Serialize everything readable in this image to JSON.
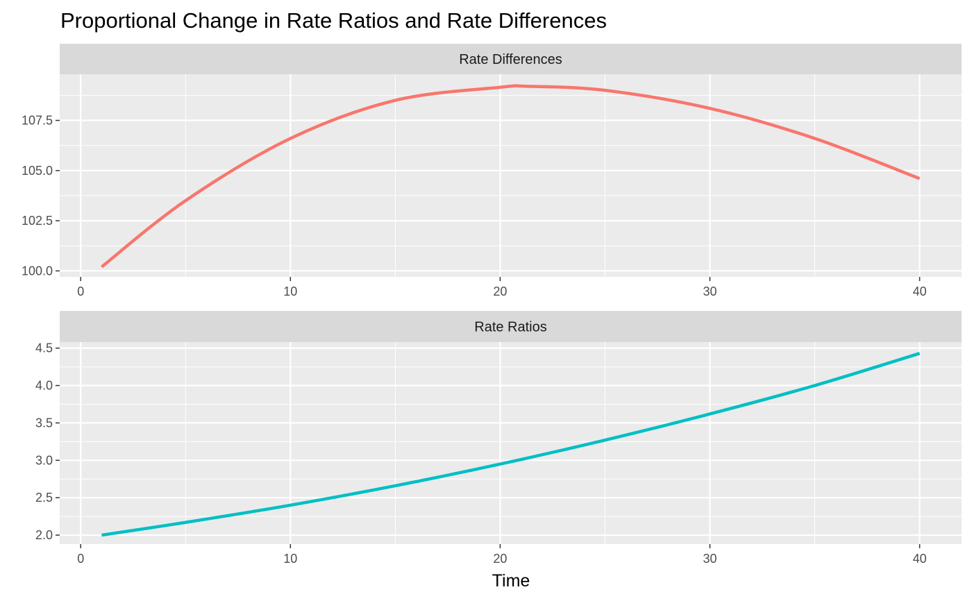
{
  "chart_data": {
    "type": "line",
    "title": "Proportional Change in Rate Ratios and Rate Differences",
    "xlabel": "Time",
    "ylabel": "",
    "legend": "none",
    "grid": true,
    "xlim": [
      -1,
      42
    ],
    "xticks": [
      0,
      10,
      20,
      30,
      40
    ],
    "xtick_labels": [
      "0",
      "10",
      "20",
      "30",
      "40"
    ],
    "panels": [
      {
        "name": "Rate Differences",
        "color": "#F8766D",
        "ylim": [
          99.7,
          109.8
        ],
        "yticks": [
          100.0,
          102.5,
          105.0,
          107.5
        ],
        "ytick_labels": [
          "100.0",
          "102.5",
          "105.0",
          "107.5"
        ],
        "x": [
          1,
          5,
          10,
          15,
          20,
          21.3,
          25,
          30,
          35,
          40
        ],
        "y": [
          100.2,
          103.5,
          106.6,
          108.5,
          109.15,
          109.2,
          109.0,
          108.1,
          106.6,
          104.6
        ]
      },
      {
        "name": "Rate Ratios",
        "color": "#00BFC4",
        "ylim": [
          1.88,
          4.58
        ],
        "yticks": [
          2.0,
          2.5,
          3.0,
          3.5,
          4.0,
          4.5
        ],
        "ytick_labels": [
          "2.0",
          "2.5",
          "3.0",
          "3.5",
          "4.0",
          "4.5"
        ],
        "x": [
          1,
          5,
          10,
          15,
          20,
          25,
          30,
          35,
          40
        ],
        "y": [
          2.0,
          2.17,
          2.4,
          2.66,
          2.95,
          3.27,
          3.62,
          4.0,
          4.43
        ]
      }
    ]
  }
}
